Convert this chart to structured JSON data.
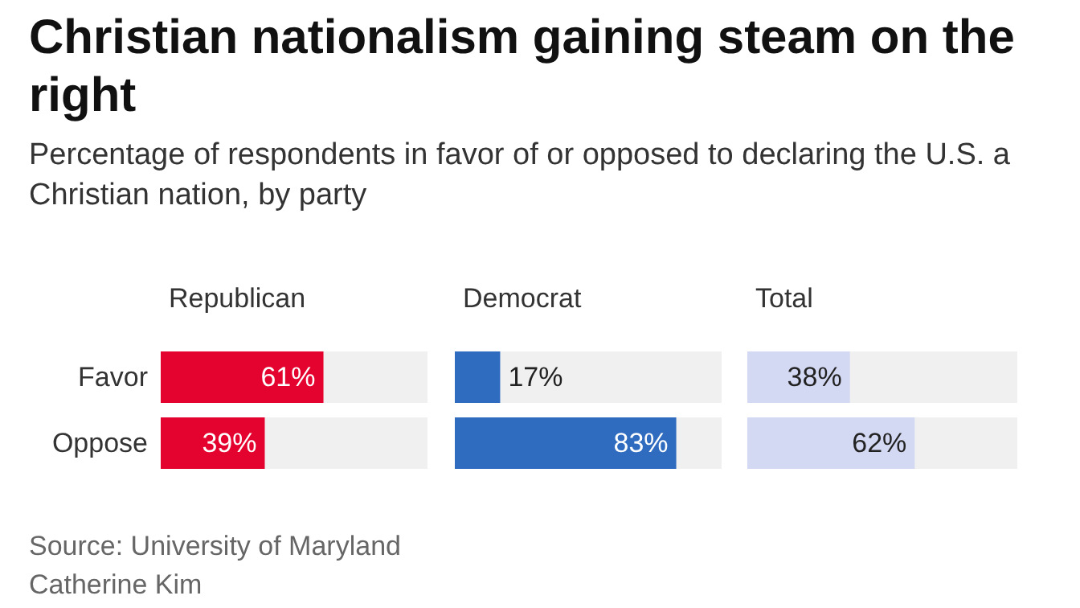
{
  "chart_data": [
    {
      "type": "other",
      "title": "Christian nationalism gaining steam on the right",
      "subtitle": "Percentage of respondents in favor of or opposed to declaring the U.S. a Christian nation, by party",
      "annotations": [
        "Source: University of Maryland",
        "Catherine Kim"
      ]
    },
    {
      "type": "bar",
      "orientation": "horizontal",
      "title": "Republican",
      "categories": [
        "Favor",
        "Oppose"
      ],
      "values": [
        61,
        39
      ],
      "value_labels": [
        "61%",
        "39%"
      ],
      "color": "#e4032e",
      "xlim": [
        0,
        100
      ],
      "tick_labels": "y"
    },
    {
      "type": "bar",
      "orientation": "horizontal",
      "title": "Democrat",
      "categories": [
        null,
        null
      ],
      "values": [
        17,
        83
      ],
      "value_labels": [
        "17%",
        "83%"
      ],
      "color": "#2f6cc0",
      "xlim": [
        0,
        100
      ],
      "tick_labels": false
    },
    {
      "type": "bar",
      "orientation": "horizontal",
      "title": "Total",
      "categories": [
        null,
        null
      ],
      "values": [
        38,
        62
      ],
      "value_labels": [
        "38%",
        "62%"
      ],
      "color": "#d4d9f3",
      "xlim": [
        0,
        100
      ],
      "tick_labels": false
    }
  ]
}
